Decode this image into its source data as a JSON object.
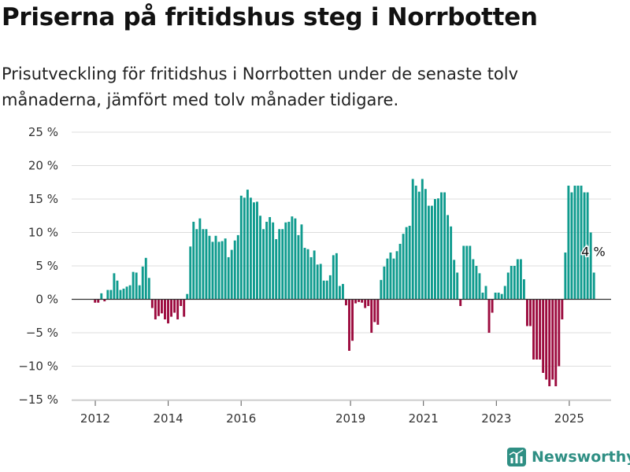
{
  "chart_data": {
    "type": "bar",
    "title": "Priserna på fritidshus steg i Norrbotten",
    "subtitle": "Prisutveckling för fritidshus i Norrbotten under de senaste tolv månaderna, jämfört med tolv månader tidigare.",
    "start_month": "2012-01",
    "ylim": [
      -15,
      25
    ],
    "y_ticks": [
      -15,
      -10,
      -5,
      0,
      5,
      10,
      15,
      20,
      25
    ],
    "y_tick_labels": [
      "−15 %",
      "−10 %",
      "−5 %",
      "0 %",
      "5 %",
      "10 %",
      "15 %",
      "20 %",
      "25 %"
    ],
    "x_ticks": [
      "2012",
      "2014",
      "2016",
      "2019",
      "2021",
      "2023",
      "2025"
    ],
    "grid": true,
    "colors": {
      "positive": "#0f9b8e",
      "negative": "#9c0b3e"
    },
    "last_value_label": "4 %",
    "values": [
      -0.5,
      -0.5,
      0.9,
      -0.3,
      1.4,
      1.4,
      3.9,
      2.8,
      1.4,
      1.6,
      1.9,
      2.1,
      4.1,
      4.0,
      2.1,
      4.9,
      6.2,
      3.2,
      -1.3,
      -3.0,
      -2.5,
      -2.1,
      -3.0,
      -3.6,
      -2.6,
      -2.0,
      -3.0,
      -1.0,
      -2.6,
      0.8,
      7.9,
      11.6,
      10.5,
      12.1,
      10.5,
      10.5,
      9.5,
      8.6,
      9.5,
      8.6,
      8.7,
      9.1,
      6.3,
      7.4,
      8.8,
      9.6,
      15.5,
      15.2,
      16.4,
      15.2,
      14.5,
      14.6,
      12.5,
      10.5,
      11.6,
      12.3,
      11.5,
      9.0,
      10.5,
      10.5,
      11.5,
      11.6,
      12.4,
      12.1,
      9.6,
      11.2,
      7.7,
      7.5,
      6.3,
      7.3,
      5.2,
      5.3,
      2.8,
      2.8,
      3.6,
      6.6,
      6.9,
      2.0,
      2.3,
      -0.9,
      -7.7,
      -6.2,
      -0.6,
      -0.4,
      -0.5,
      -1.3,
      -1.0,
      -5.0,
      -3.4,
      -3.8,
      2.9,
      4.9,
      6.1,
      7.0,
      6.1,
      7.2,
      8.3,
      9.8,
      10.8,
      11.0,
      18.0,
      17.0,
      16.1,
      18.0,
      16.5,
      14.0,
      14.0,
      15.0,
      15.1,
      16.0,
      16.0,
      12.6,
      10.9,
      5.9,
      4.0,
      -1.0,
      8.0,
      8.0,
      8.0,
      6.0,
      5.0,
      3.9,
      1.0,
      2.0,
      -5.0,
      -2.0,
      1.0,
      1.0,
      0.8,
      2.0,
      4.0,
      5.0,
      5.0,
      6.0,
      6.0,
      3.0,
      -4.0,
      -4.0,
      -9.0,
      -9.0,
      -9.0,
      -11.0,
      -12.0,
      -13.0,
      -12.0,
      -13.0,
      -10.0,
      -3.0,
      7.0,
      17.0,
      16.0,
      17.0,
      17.0,
      17.0,
      16.0,
      16.0,
      10.0,
      4.0
    ]
  },
  "brand": {
    "name": "Newsworthy",
    "icon": "newsworthy-logo-icon"
  }
}
